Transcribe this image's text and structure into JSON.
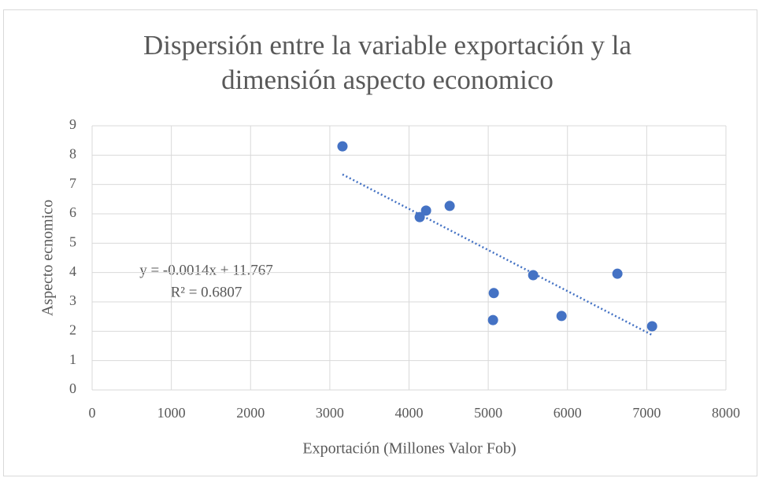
{
  "chart_data": {
    "type": "scatter",
    "title": "Dispersión entre la variable exportación y la dimensión aspecto economico",
    "xlabel": "Exportación  (Millones Valor Fob)",
    "ylabel": "Aspecto ecnomico",
    "x": [
      3160,
      4135,
      4215,
      4513,
      5567,
      5070,
      5060,
      5925,
      6630,
      7068
    ],
    "values": [
      8.3,
      5.89,
      6.11,
      6.27,
      3.91,
      3.3,
      2.38,
      2.52,
      3.96,
      2.17
    ],
    "color": "#4472c4",
    "xlim": [
      0,
      8000
    ],
    "xticks": [
      0,
      1000,
      2000,
      3000,
      4000,
      5000,
      6000,
      7000,
      8000
    ],
    "ylim": [
      0,
      9
    ],
    "yticks": [
      0,
      1,
      2,
      3,
      4,
      5,
      6,
      7,
      8,
      9
    ],
    "grid": true,
    "trendline": {
      "slope": -0.0014,
      "intercept": 11.767,
      "equation": "y = -0.0014x + 11.767",
      "r2_label": "R² = 0.6807"
    }
  }
}
